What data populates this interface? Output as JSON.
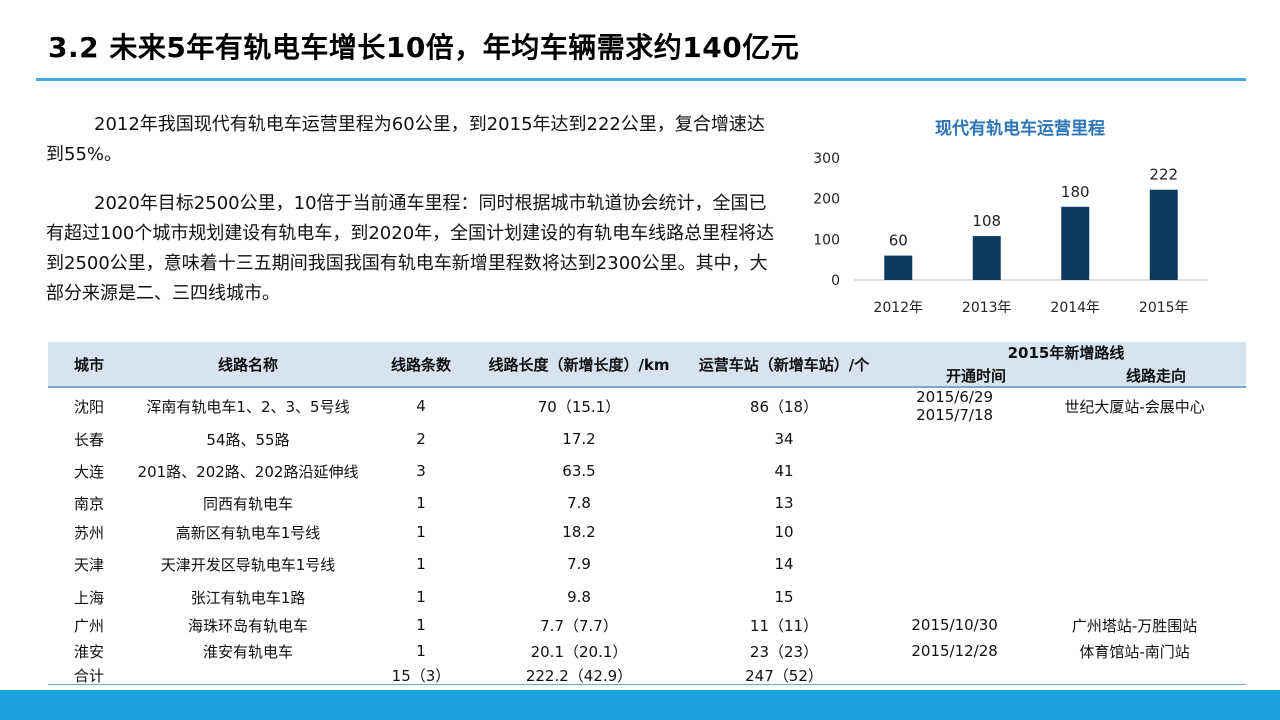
{
  "title": "3.2 未来5年有轨电车增长10倍，年均车辆需求约140亿元",
  "paragraphs": {
    "p1": "2012年我国现代有轨电车运营里程为60公里，到2015年达到222公里，复合增速达到55%。",
    "p2": "2020年目标2500公里，10倍于当前通车里程：同时根据城市轨道协会统计，全国已有超过100个城市规划建设有轨电车，到2020年，全国计划建设的有轨电车线路总里程将达到2500公里，意味着十三五期间我国我国有轨电车新增里程数将达到2300公里。其中，大部分来源是二、三四线城市。"
  },
  "chart_data": {
    "type": "bar",
    "title": "现代有轨电车运营里程",
    "categories": [
      "2012年",
      "2013年",
      "2014年",
      "2015年"
    ],
    "values": [
      60,
      108,
      180,
      222
    ],
    "yticks": [
      0,
      100,
      200,
      300
    ],
    "ylim": [
      0,
      300
    ],
    "xlabel": "",
    "ylabel": "",
    "grid": false,
    "legend": "none",
    "bar_color": "#0d3a5e"
  },
  "table": {
    "headers": {
      "city": "城市",
      "name": "线路名称",
      "count": "线路条数",
      "length": "线路长度（新增长度）/km",
      "stations": "运营车站（新增车站）/个",
      "new2015": "2015年新增路线",
      "open": "开通时间",
      "direction": "线路走向"
    },
    "rows": [
      {
        "city": "沈阳",
        "name": "浑南有轨电车1、2、3、5号线",
        "count": "4",
        "length": "70（15.1）",
        "stations": "86（18）",
        "open": "2015/6/29\n2015/7/18",
        "direction": "世纪大厦站-会展中心"
      },
      {
        "city": "长春",
        "name": "54路、55路",
        "count": "2",
        "length": "17.2",
        "stations": "34",
        "open": "",
        "direction": ""
      },
      {
        "city": "大连",
        "name": "201路、202路、202路沿延伸线",
        "count": "3",
        "length": "63.5",
        "stations": "41",
        "open": "",
        "direction": ""
      },
      {
        "city": "南京",
        "name": "同西有轨电车",
        "count": "1",
        "length": "7.8",
        "stations": "13",
        "open": "",
        "direction": ""
      },
      {
        "city": "苏州",
        "name": "高新区有轨电车1号线",
        "count": "1",
        "length": "18.2",
        "stations": "10",
        "open": "",
        "direction": ""
      },
      {
        "city": "天津",
        "name": "天津开发区导轨电车1号线",
        "count": "1",
        "length": "7.9",
        "stations": "14",
        "open": "",
        "direction": ""
      },
      {
        "city": "上海",
        "name": "张江有轨电车1路",
        "count": "1",
        "length": "9.8",
        "stations": "15",
        "open": "",
        "direction": ""
      },
      {
        "city": "广州",
        "name": "海珠环岛有轨电车",
        "count": "1",
        "length": "7.7（7.7）",
        "stations": "11（11）",
        "open": "2015/10/30",
        "direction": "广州塔站-万胜围站"
      },
      {
        "city": "淮安",
        "name": "淮安有轨电车",
        "count": "1",
        "length": "20.1（20.1）",
        "stations": "23（23）",
        "open": "2015/12/28",
        "direction": "体育馆站-南门站"
      },
      {
        "city": "合计",
        "name": "",
        "count": "15（3）",
        "length": "222.2（42.9）",
        "stations": "247（52）",
        "open": "",
        "direction": ""
      }
    ]
  }
}
